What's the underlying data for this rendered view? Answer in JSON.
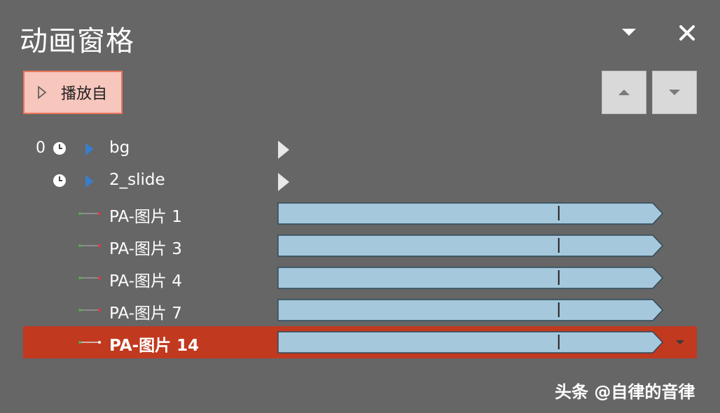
{
  "pane": {
    "title": "动画窗格",
    "play_button_label": "播放自"
  },
  "icons": {
    "dropdown": "chevron-down-icon",
    "close": "close-icon",
    "play": "play-triangle-icon",
    "move_up": "move-up-icon",
    "move_down": "move-down-icon",
    "timing": "clock-icon"
  },
  "colors": {
    "background": "#666666",
    "selected_row": "#c1391f",
    "play_button_fill": "#f7c6bc",
    "play_button_border": "#e8765a",
    "timeline_bar": "#a6c8dc",
    "expand_triangle": "#3a7dc9"
  },
  "animations": [
    {
      "index": "0",
      "name": "bg",
      "type": "group"
    },
    {
      "index": "",
      "name": "2_slide",
      "type": "group"
    },
    {
      "index": "",
      "name": "PA-图片 1",
      "type": "motion",
      "progress_marker": 0.73
    },
    {
      "index": "",
      "name": "PA-图片 3",
      "type": "motion",
      "progress_marker": 0.73
    },
    {
      "index": "",
      "name": "PA-图片 4",
      "type": "motion",
      "progress_marker": 0.73
    },
    {
      "index": "",
      "name": "PA-图片 7",
      "type": "motion",
      "progress_marker": 0.73
    },
    {
      "index": "",
      "name": "PA-图片 14",
      "type": "motion",
      "progress_marker": 0.73,
      "selected": true
    }
  ],
  "watermark": "头条 @自律的音律"
}
